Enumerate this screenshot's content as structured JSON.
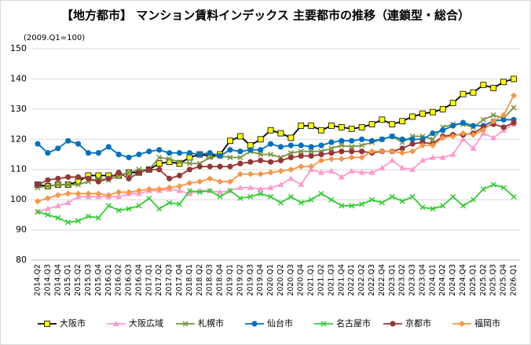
{
  "chart_data": {
    "type": "line",
    "title": "【地方都市】 マンション賃料インデックス 主要都市の推移（連鎖型・総合）",
    "y_label": "(2009.Q1=100)",
    "categories": [
      "2014.Q2",
      "2014.Q3",
      "2014.Q4",
      "2015.Q1",
      "2015.Q2",
      "2015.Q3",
      "2015.Q4",
      "2016.Q1",
      "2016.Q2",
      "2016.Q3",
      "2016.Q4",
      "2017.Q1",
      "2017.Q2",
      "2017.Q3",
      "2017.Q4",
      "2018.Q1",
      "2018.Q2",
      "2018.Q3",
      "2018.Q4",
      "2019.Q1",
      "2019.Q2",
      "2019.Q3",
      "2019.Q4",
      "2020.Q1",
      "2020.Q2",
      "2020.Q3",
      "2020.Q4",
      "2021.Q1",
      "2021.Q2",
      "2021.Q3",
      "2021.Q4",
      "2022.Q1",
      "2022.Q2",
      "2022.Q3",
      "2022.Q4",
      "2023.Q1",
      "2023.Q2",
      "2023.Q3",
      "2023.Q4",
      "2024.Q1",
      "2024.Q2",
      "2024.Q3",
      "2024.Q4",
      "2025.Q1",
      "2025.Q2",
      "2025.Q3",
      "2025.Q4",
      "2026.Q1"
    ],
    "ylim": [
      80,
      150
    ],
    "yticks": [
      80,
      90,
      100,
      110,
      120,
      130,
      140,
      150
    ],
    "grid": true,
    "legend": "bottom",
    "series": [
      {
        "name": "大阪市",
        "color": "#000000",
        "marker": "square",
        "marker_color": "#ffff00",
        "values": [
          105,
          104.5,
          105,
          105,
          106,
          108,
          108,
          108,
          108,
          109,
          109,
          110,
          112,
          112.5,
          112,
          114,
          115,
          114.5,
          115,
          119.5,
          121,
          118,
          120,
          123,
          122,
          120.5,
          124.5,
          124.5,
          123,
          124.5,
          124,
          123.5,
          124,
          125,
          126.5,
          125,
          126,
          127.5,
          128.5,
          129,
          130,
          132,
          135,
          135.5,
          138,
          137,
          139,
          140
        ]
      },
      {
        "name": "大阪広域",
        "color": "#ff99cc",
        "marker": "triangle",
        "marker_color": "#ff99cc",
        "values": [
          96,
          97,
          98,
          99,
          101,
          101,
          101,
          101,
          101,
          102,
          102,
          103,
          103,
          103.5,
          103,
          102,
          103,
          103,
          102.5,
          103,
          104,
          104,
          103.5,
          104,
          105,
          107,
          105,
          110,
          109,
          109.5,
          107.5,
          109.5,
          109,
          109,
          110.5,
          113,
          110.5,
          110,
          113,
          114,
          114,
          115,
          120,
          117,
          122,
          120.5,
          123,
          125
        ]
      },
      {
        "name": "札幌市",
        "color": "#76923c",
        "marker": "x",
        "marker_color": "#76923c",
        "values": [
          104,
          104.5,
          105,
          105,
          105,
          106,
          107,
          106.5,
          108,
          109,
          110,
          110,
          114,
          113.5,
          112.5,
          112,
          112,
          114,
          114.5,
          114,
          114,
          116,
          115,
          115,
          114,
          115.5,
          116,
          116,
          116,
          117,
          118,
          117.5,
          118,
          119,
          120,
          121,
          119,
          121,
          121,
          120,
          124,
          125,
          125,
          124,
          126.5,
          128,
          127,
          130.5
        ]
      },
      {
        "name": "仙台市",
        "color": "#0070c0",
        "marker": "circle",
        "marker_color": "#0070c0",
        "values": [
          118.5,
          115.5,
          117,
          119.5,
          118.5,
          115.5,
          115.5,
          117.5,
          115,
          114,
          115,
          116,
          116.5,
          115.5,
          115.5,
          115.5,
          115,
          115.5,
          114.5,
          116.5,
          116,
          116.5,
          116.5,
          118.5,
          117.5,
          118,
          118,
          117.5,
          118,
          119,
          119.5,
          119.5,
          120,
          119.5,
          120,
          121,
          120,
          120,
          120,
          122,
          123,
          124.5,
          125.5,
          124.5,
          124.5,
          126,
          126.5,
          126.5
        ]
      },
      {
        "name": "名古屋市",
        "color": "#33cc33",
        "marker": "x",
        "marker_color": "#33cc33",
        "values": [
          96,
          95,
          94,
          92.5,
          93,
          94.5,
          94,
          98,
          96.5,
          97,
          98,
          100.5,
          97,
          99,
          98.5,
          103,
          102.5,
          103,
          101,
          103,
          100.5,
          101,
          102,
          101,
          99,
          101,
          99,
          100,
          102,
          100,
          98,
          98,
          98.5,
          100,
          99,
          101,
          99.5,
          101,
          97.5,
          97,
          98,
          101,
          98,
          100,
          103.5,
          105,
          104,
          101
        ]
      },
      {
        "name": "京都市",
        "color": "#953735",
        "marker": "circle",
        "marker_color": "#953735",
        "values": [
          105,
          106.5,
          107,
          107.5,
          107.5,
          107,
          106,
          107,
          109,
          107,
          109,
          110,
          110,
          107,
          108,
          110,
          111,
          111,
          111,
          111,
          112,
          112.5,
          113,
          112.5,
          113,
          114,
          114.5,
          114.5,
          115,
          115.5,
          116,
          116,
          116,
          115.5,
          116,
          116,
          117,
          118.5,
          119,
          118.5,
          121,
          121.5,
          121.5,
          122,
          124,
          125,
          124,
          125.5
        ]
      },
      {
        "name": "福岡市",
        "color": "#f79646",
        "marker": "diamond",
        "marker_color": "#f79646",
        "values": [
          99.5,
          100.5,
          101.5,
          102,
          102,
          102,
          102,
          101.5,
          102.5,
          102.5,
          103,
          103.5,
          103.5,
          104,
          104.5,
          105.5,
          106,
          107,
          106,
          106,
          108.5,
          108.5,
          108.5,
          109,
          109.5,
          110,
          111,
          111,
          113,
          113.5,
          113.5,
          114,
          114,
          116,
          116,
          116,
          115.5,
          116,
          118,
          118,
          120.5,
          121,
          122,
          121.5,
          123,
          126,
          128,
          134.5
        ]
      }
    ]
  }
}
